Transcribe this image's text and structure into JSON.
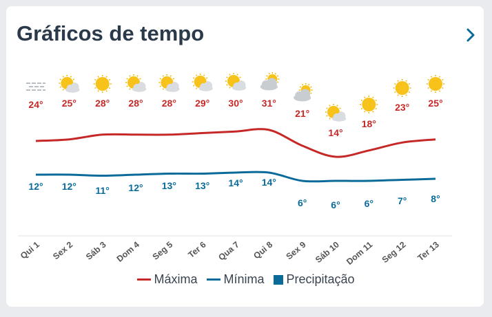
{
  "header": {
    "title": "Gráficos de tempo",
    "arrow_icon": "chevron-right-icon"
  },
  "colors": {
    "max": "#c62828",
    "min": "#0a6b9a",
    "precip": "#0a6b9a",
    "accent": "#0a6b9a",
    "grid": "#e3e3e3",
    "axis_text": "#555555"
  },
  "chart_data": {
    "type": "line",
    "categories": [
      "Qui 1",
      "Sex 2",
      "Sáb 3",
      "Dom 4",
      "Seg 5",
      "Ter 6",
      "Qua 7",
      "Qui 8",
      "Sex 9",
      "Sáb 10",
      "Dom 11",
      "Seg 12",
      "Ter 13"
    ],
    "series": [
      {
        "name": "Máxima",
        "values": [
          24,
          25,
          28,
          28,
          28,
          29,
          30,
          31,
          21,
          14,
          18,
          23,
          25
        ]
      },
      {
        "name": "Mínima",
        "values": [
          12,
          12,
          11,
          12,
          13,
          13,
          14,
          14,
          6,
          6,
          6,
          7,
          8
        ]
      }
    ],
    "precipitation_name": "Precipitação",
    "value_suffix": "°",
    "icons": [
      "fog-icon",
      "partly-cloudy-icon",
      "sun-icon",
      "partly-cloudy-icon",
      "partly-cloudy-icon",
      "partly-cloudy-icon",
      "partly-cloudy-icon",
      "mostly-cloudy-icon",
      "mostly-cloudy-icon",
      "partly-cloudy-icon",
      "sun-icon",
      "sun-icon",
      "sun-icon"
    ],
    "legend_position": "bottom-center",
    "grid": false
  }
}
